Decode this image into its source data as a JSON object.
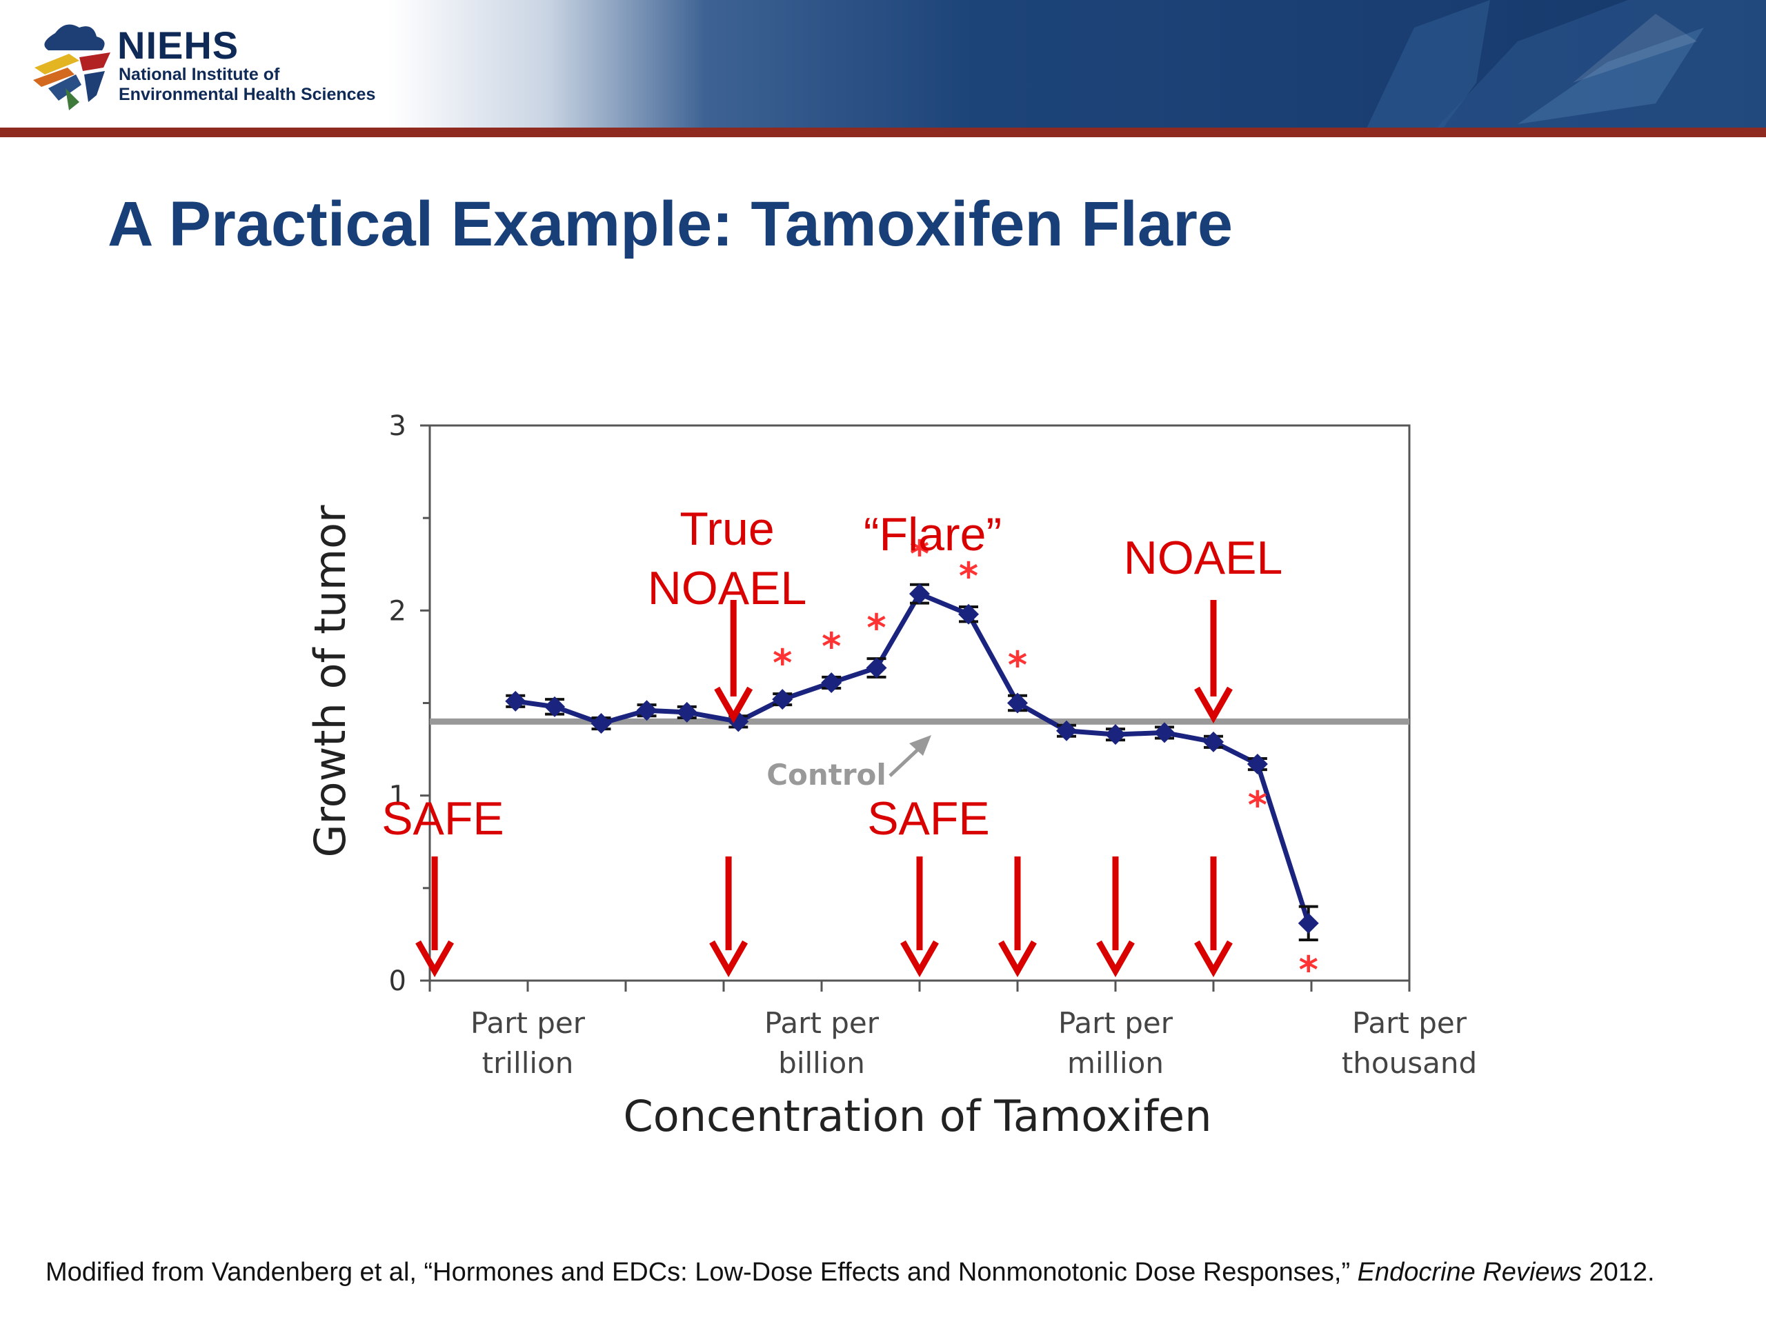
{
  "header": {
    "logo_name": "NIEHS",
    "logo_sub_line1": "National Institute of",
    "logo_sub_line2": "Environmental Health Sciences",
    "accent_color": "#17396b",
    "rule_color": "#8e2a1f"
  },
  "slide_title": "A Practical Example: Tamoxifen Flare",
  "footnote": {
    "prefix": "Modified from Vandenberg et al, “Hormones and EDCs: Low-Dose Effects and Nonmonotonic Dose Responses,” ",
    "journal": "Endocrine Reviews",
    "year": " 2012."
  },
  "chart_data": {
    "type": "line",
    "ylabel": "Growth of tumor",
    "xlabel": "Concentration of Tamoxifen",
    "ylim": [
      0,
      3
    ],
    "yticks": [
      "0",
      "1",
      "2",
      "3"
    ],
    "xlim": [
      0,
      10
    ],
    "x_tick_labels": [
      {
        "x": 1,
        "line1": "Part per",
        "line2": "trillion"
      },
      {
        "x": 4,
        "line1": "Part per",
        "line2": "billion"
      },
      {
        "x": 7,
        "line1": "Part per",
        "line2": "million"
      },
      {
        "x": 10,
        "line1": "Part per",
        "line2": "thousand"
      }
    ],
    "control_level": 1.4,
    "control_label": "Control",
    "series": [
      {
        "color": "#1a237e",
        "points": [
          {
            "x": 0.875,
            "y": 1.51,
            "err": 0.03,
            "sig": false
          },
          {
            "x": 1.275,
            "y": 1.48,
            "err": 0.04,
            "sig": false
          },
          {
            "x": 1.75,
            "y": 1.39,
            "err": 0.03,
            "sig": false
          },
          {
            "x": 2.215,
            "y": 1.46,
            "err": 0.03,
            "sig": false
          },
          {
            "x": 2.625,
            "y": 1.45,
            "err": 0.03,
            "sig": false
          },
          {
            "x": 3.15,
            "y": 1.4,
            "err": 0.03,
            "sig": false
          },
          {
            "x": 3.6,
            "y": 1.52,
            "err": 0.03,
            "sig": true
          },
          {
            "x": 4.1,
            "y": 1.61,
            "err": 0.03,
            "sig": true
          },
          {
            "x": 4.56,
            "y": 1.69,
            "err": 0.05,
            "sig": true
          },
          {
            "x": 5.0,
            "y": 2.09,
            "err": 0.05,
            "sig": true
          },
          {
            "x": 5.5,
            "y": 1.98,
            "err": 0.04,
            "sig": true
          },
          {
            "x": 6.0,
            "y": 1.5,
            "err": 0.04,
            "sig": true
          },
          {
            "x": 6.5,
            "y": 1.35,
            "err": 0.03,
            "sig": false
          },
          {
            "x": 7.0,
            "y": 1.33,
            "err": 0.03,
            "sig": false
          },
          {
            "x": 7.5,
            "y": 1.34,
            "err": 0.03,
            "sig": false
          },
          {
            "x": 8.0,
            "y": 1.29,
            "err": 0.03,
            "sig": false
          },
          {
            "x": 8.45,
            "y": 1.17,
            "err": 0.03,
            "sig": true
          },
          {
            "x": 8.97,
            "y": 0.31,
            "err": 0.09,
            "sig": true
          }
        ]
      }
    ],
    "significance_marker": "*",
    "annotations": [
      {
        "text_lines": [
          "True",
          "NOAEL"
        ],
        "kind": "noael"
      },
      {
        "text_lines": [
          "“Flare”"
        ],
        "kind": "flare"
      },
      {
        "text_lines": [
          "NOAEL"
        ],
        "kind": "noael"
      },
      {
        "text_lines": [
          "SAFE"
        ],
        "kind": "safe"
      },
      {
        "text_lines": [
          "SAFE"
        ],
        "kind": "safe"
      }
    ],
    "noael_arrows_x": [
      3.1,
      8.0
    ],
    "safe_arrows_x": [
      0.05,
      3.05,
      5.0,
      6.0,
      7.0,
      8.0
    ],
    "annotation_color": "#d90000",
    "marker_color": "#ff3333",
    "control_color": "#999999"
  }
}
